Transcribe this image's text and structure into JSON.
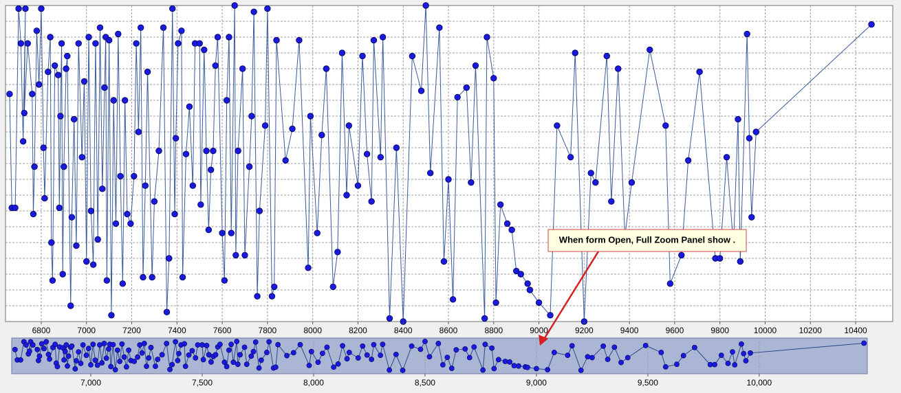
{
  "chart_data": {
    "type": "line",
    "color": "#1a1adc",
    "grid": true,
    "x": [
      6660,
      6670,
      6685,
      6700,
      6710,
      6720,
      6730,
      6725,
      6740,
      6760,
      6765,
      6770,
      6780,
      6790,
      6800,
      6810,
      6815,
      6830,
      6840,
      6845,
      6850,
      6860,
      6875,
      6880,
      6885,
      6890,
      6895,
      6900,
      6910,
      6915,
      6930,
      6935,
      6945,
      6955,
      6965,
      6980,
      6990,
      7000,
      7010,
      7020,
      7030,
      7040,
      7050,
      7060,
      7070,
      7080,
      7085,
      7090,
      7100,
      7110,
      7120,
      7130,
      7140,
      7150,
      7160,
      7170,
      7180,
      7195,
      7210,
      7220,
      7230,
      7240,
      7250,
      7260,
      7270,
      7290,
      7300,
      7320,
      7340,
      7355,
      7365,
      7380,
      7390,
      7395,
      7405,
      7420,
      7425,
      7440,
      7455,
      7470,
      7480,
      7500,
      7505,
      7520,
      7530,
      7540,
      7550,
      7560,
      7570,
      7580,
      7600,
      7610,
      7620,
      7630,
      7640,
      7655,
      7660,
      7670,
      7690,
      7700,
      7720,
      7730,
      7740,
      7755,
      7765,
      7790,
      7800,
      7820,
      7830,
      7840,
      7880,
      7910,
      7940,
      7980,
      7990,
      8020,
      8040,
      8060,
      8090,
      8110,
      8130,
      8150,
      8160,
      8200,
      8220,
      8240,
      8260,
      8270,
      8300,
      8310,
      8340,
      8370,
      8400,
      8440,
      8480,
      8500,
      8520,
      8560,
      8580,
      8600,
      8620,
      8640,
      8680,
      8700,
      8720,
      8760,
      8770,
      8800,
      8810,
      8830,
      8860,
      8880,
      8900,
      8920,
      8950,
      8960,
      9000,
      9050,
      9080,
      9140,
      9160,
      9200,
      9230,
      9250,
      9300,
      9320,
      9350,
      9380,
      9410,
      9490,
      9560,
      9580,
      9630,
      9660,
      9710,
      9780,
      9800,
      9830,
      9860,
      9880,
      9890,
      9920,
      9930,
      9940,
      9960,
      10470
    ],
    "series": [
      {
        "color": "#1a1adc",
        "values": [
          72,
          36,
          36,
          99,
          88,
          57,
          99,
          66,
          88,
          72,
          34,
          49,
          92,
          75,
          99,
          55,
          39,
          79,
          90,
          25,
          13,
          81,
          78,
          36,
          65,
          88,
          15,
          49,
          80,
          84,
          5,
          33,
          64,
          24,
          88,
          52,
          76,
          19,
          90,
          35,
          18,
          88,
          26,
          93,
          42,
          74,
          90,
          13,
          89,
          2,
          70,
          31,
          91,
          46,
          12,
          70,
          34,
          31,
          46,
          88,
          60,
          93,
          14,
          43,
          79,
          14,
          38,
          54,
          93,
          3,
          20,
          99,
          34,
          58,
          88,
          92,
          14,
          53,
          68,
          43,
          88,
          88,
          37,
          86,
          54,
          29,
          48,
          54,
          81,
          90,
          28,
          13,
          70,
          90,
          28,
          100,
          21,
          54,
          80,
          21,
          49,
          65,
          98,
          8,
          35,
          62,
          99,
          8,
          11,
          89,
          51,
          61,
          89,
          17,
          65,
          28,
          59,
          80,
          11,
          22,
          85,
          40,
          62,
          43,
          84,
          53,
          38,
          89,
          52,
          90,
          1,
          55,
          0,
          84,
          73,
          100,
          47,
          93,
          19,
          45,
          7,
          71,
          74,
          44,
          81,
          1,
          90,
          77,
          6,
          37,
          31,
          29,
          16,
          15,
          12,
          10,
          6,
          2,
          62,
          52,
          85,
          0,
          47,
          44,
          84,
          38,
          80,
          27,
          44,
          86,
          62,
          12,
          21,
          51,
          79,
          20,
          20,
          52,
          24,
          64,
          19,
          91,
          58,
          33,
          60,
          94
        ]
      }
    ],
    "xlim": [
      6642,
      10564
    ],
    "ylim": [
      0,
      100
    ],
    "xticks": [
      6800,
      7000,
      7200,
      7400,
      7600,
      7800,
      8000,
      8200,
      8400,
      8600,
      8800,
      9000,
      9200,
      9400,
      9600,
      9800,
      10000,
      10200,
      10400
    ],
    "overview": {
      "xlim": [
        6645,
        10485
      ],
      "xticks": [
        {
          "value": 7000,
          "label": "7,000"
        },
        {
          "value": 7500,
          "label": "7,500"
        },
        {
          "value": 8000,
          "label": "8,000"
        },
        {
          "value": 8500,
          "label": "8,500"
        },
        {
          "value": 9000,
          "label": "9,000"
        },
        {
          "value": 9500,
          "label": "9,500"
        },
        {
          "value": 10000,
          "label": "10,000"
        }
      ]
    },
    "annotation": "When form Open, Full Zoom Panel show ."
  }
}
